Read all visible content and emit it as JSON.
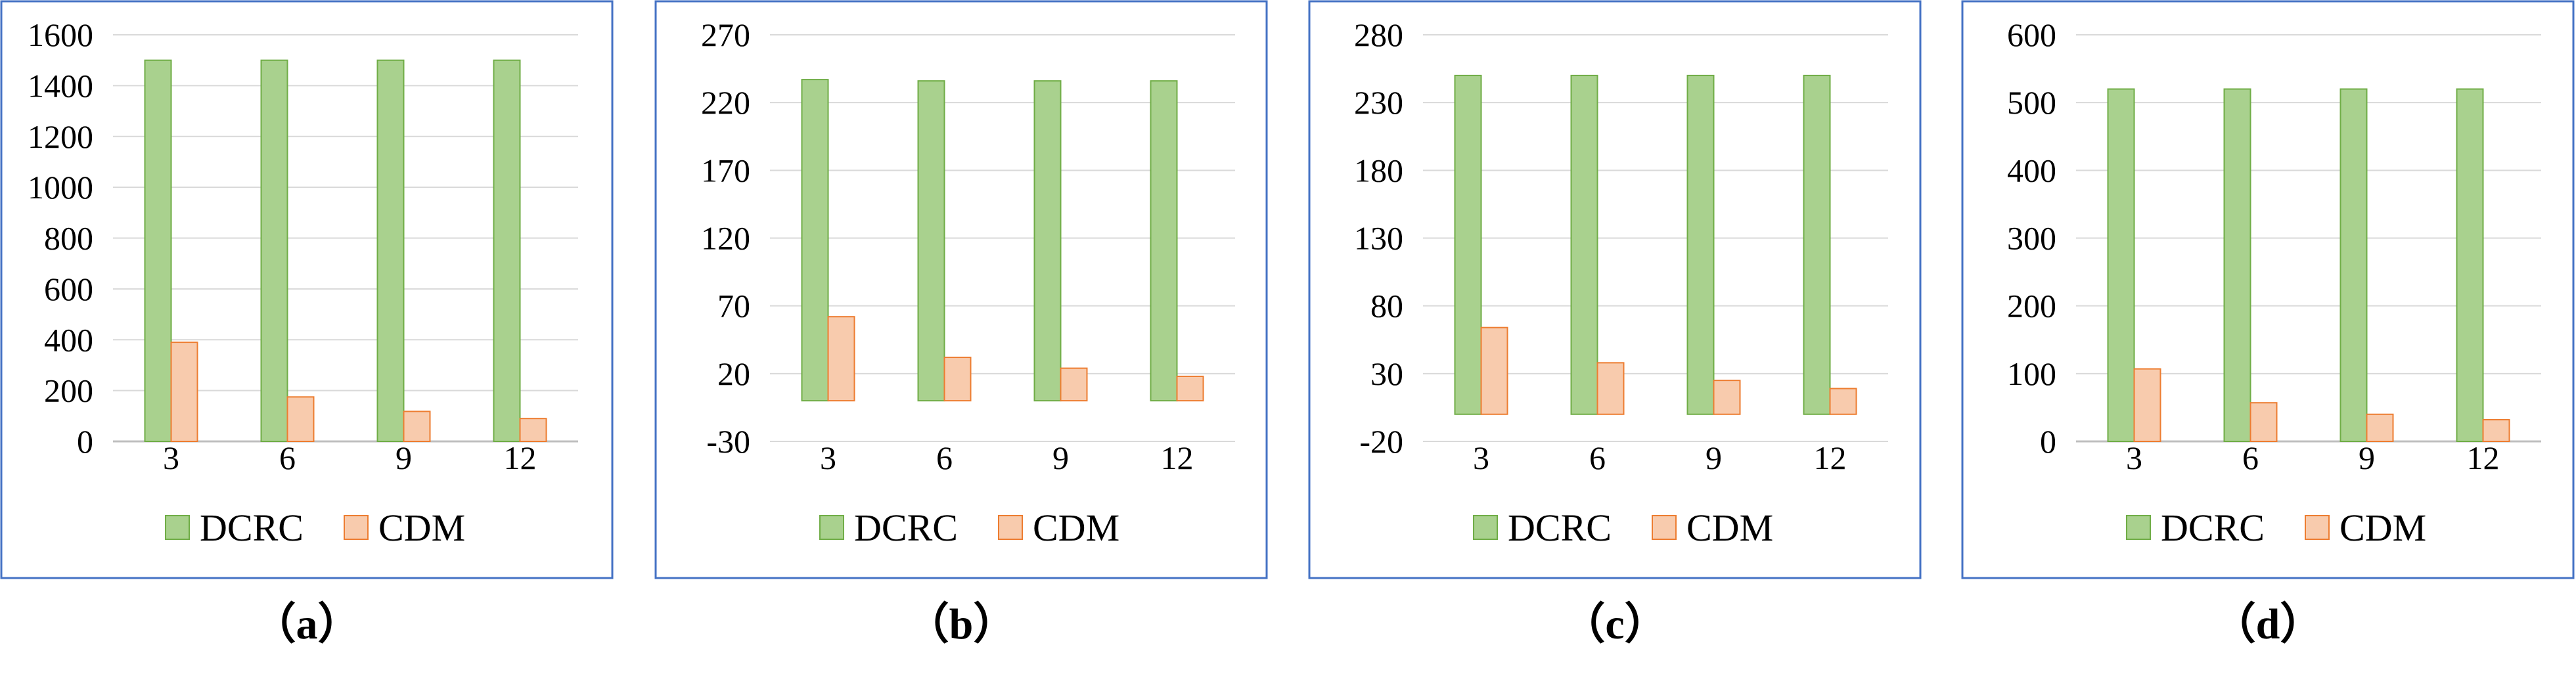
{
  "colors": {
    "frame": "#4472c4",
    "grid": "#d9d9d9",
    "axis": "#bfbfbf",
    "text": "#000000",
    "dcrc_fill": "#a9d18e",
    "dcrc_stroke": "#70ad47",
    "cdm_fill": "#f8cbad",
    "cdm_stroke": "#ed7d31"
  },
  "chart_data": [
    {
      "type": "bar",
      "caption": "（a）",
      "categories": [
        "3",
        "6",
        "9",
        "12"
      ],
      "series": [
        {
          "name": "DCRC",
          "values": [
            1500,
            1500,
            1500,
            1500
          ]
        },
        {
          "name": "CDM",
          "values": [
            390,
            175,
            118,
            90
          ]
        }
      ],
      "ylim": [
        0,
        1600
      ],
      "yticks": [
        "0",
        "200",
        "400",
        "600",
        "800",
        "1000",
        "1200",
        "1400",
        "1600"
      ],
      "grid": true,
      "legend": "bottom"
    },
    {
      "type": "bar",
      "caption": "（b）",
      "categories": [
        "3",
        "6",
        "9",
        "12"
      ],
      "series": [
        {
          "name": "DCRC",
          "values": [
            237,
            236,
            236,
            236
          ]
        },
        {
          "name": "CDM",
          "values": [
            62,
            32,
            24,
            18
          ]
        }
      ],
      "ylim": [
        -30,
        270
      ],
      "yticks": [
        "-30",
        "20",
        "70",
        "120",
        "170",
        "220",
        "270"
      ],
      "grid": true,
      "legend": "bottom"
    },
    {
      "type": "bar",
      "caption": "（c）",
      "categories": [
        "3",
        "6",
        "9",
        "12"
      ],
      "series": [
        {
          "name": "DCRC",
          "values": [
            250,
            250,
            250,
            250
          ]
        },
        {
          "name": "CDM",
          "values": [
            64,
            38,
            25,
            19
          ]
        }
      ],
      "ylim": [
        -20,
        280
      ],
      "yticks": [
        "-20",
        "30",
        "80",
        "130",
        "180",
        "230",
        "280"
      ],
      "grid": true,
      "legend": "bottom"
    },
    {
      "type": "bar",
      "caption": "（d）",
      "categories": [
        "3",
        "6",
        "9",
        "12"
      ],
      "series": [
        {
          "name": "DCRC",
          "values": [
            520,
            520,
            520,
            520
          ]
        },
        {
          "name": "CDM",
          "values": [
            107,
            57,
            40,
            32
          ]
        }
      ],
      "ylim": [
        0,
        600
      ],
      "yticks": [
        "0",
        "100",
        "200",
        "300",
        "400",
        "500",
        "600"
      ],
      "grid": true,
      "legend": "bottom"
    }
  ]
}
